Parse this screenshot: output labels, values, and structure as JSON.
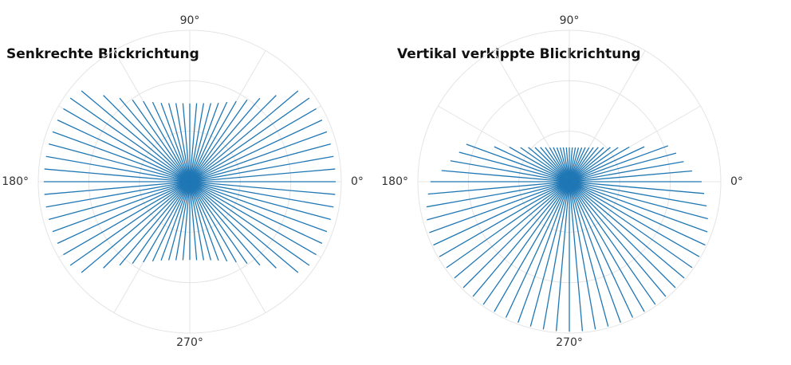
{
  "chart_data": [
    {
      "type": "polar-rays",
      "title": "Senkrechte Blickrichtung",
      "color": "#1f77b4",
      "rlim": [
        0,
        3
      ],
      "rticks": [
        1,
        2,
        3
      ],
      "thetaticks": [
        {
          "value": 0,
          "label": "0°"
        },
        {
          "value": 90,
          "label": "90°"
        },
        {
          "value": 180,
          "label": "180°"
        },
        {
          "value": 270,
          "label": "270°"
        }
      ],
      "thetagrid": [
        0,
        30,
        60,
        90,
        120,
        150,
        180,
        210,
        240,
        270,
        300,
        330
      ],
      "theta": [
        0,
        5,
        10,
        15,
        20,
        25,
        30,
        35,
        40,
        45,
        50,
        55,
        60,
        65,
        70,
        75,
        80,
        85,
        90,
        95,
        100,
        105,
        110,
        115,
        120,
        125,
        130,
        135,
        140,
        145,
        150,
        155,
        160,
        165,
        170,
        175,
        180,
        185,
        190,
        195,
        200,
        205,
        210,
        215,
        220,
        225,
        230,
        235,
        240,
        245,
        250,
        255,
        260,
        265,
        270,
        275,
        280,
        285,
        290,
        295,
        300,
        305,
        310,
        315,
        320,
        325,
        330,
        335,
        340,
        345,
        350,
        355
      ],
      "values": [
        2.89,
        2.89,
        2.89,
        2.89,
        2.89,
        2.89,
        2.89,
        2.89,
        2.8,
        2.42,
        2.16,
        1.98,
        1.84,
        1.74,
        1.66,
        1.61,
        1.58,
        1.56,
        1.55,
        1.56,
        1.58,
        1.61,
        1.66,
        1.74,
        1.84,
        1.98,
        2.16,
        2.42,
        2.8,
        2.89,
        2.89,
        2.89,
        2.89,
        2.89,
        2.89,
        2.89,
        2.89,
        2.89,
        2.89,
        2.89,
        2.89,
        2.89,
        2.89,
        2.89,
        2.8,
        2.42,
        2.16,
        1.98,
        1.84,
        1.74,
        1.66,
        1.61,
        1.58,
        1.56,
        1.55,
        1.56,
        1.58,
        1.61,
        1.66,
        1.74,
        1.84,
        1.98,
        2.16,
        2.42,
        2.8,
        2.89,
        2.89,
        2.89,
        2.89,
        2.89,
        2.89,
        2.89
      ]
    },
    {
      "type": "polar-rays",
      "title": "Vertikal verkippte Blickrichtung",
      "color": "#1f77b4",
      "rlim": [
        0,
        3
      ],
      "rticks": [
        1,
        2,
        3
      ],
      "thetaticks": [
        {
          "value": 0,
          "label": "0°"
        },
        {
          "value": 90,
          "label": "90°"
        },
        {
          "value": 180,
          "label": "180°"
        },
        {
          "value": 270,
          "label": "270°"
        }
      ],
      "thetagrid": [
        0,
        30,
        60,
        90,
        120,
        150,
        180,
        210,
        240,
        270,
        300,
        330
      ],
      "theta": [
        0,
        5,
        10,
        15,
        20,
        25,
        30,
        35,
        40,
        45,
        50,
        55,
        60,
        65,
        70,
        75,
        80,
        85,
        90,
        95,
        100,
        105,
        110,
        115,
        120,
        125,
        130,
        135,
        140,
        145,
        150,
        155,
        160,
        165,
        170,
        175,
        180,
        185,
        190,
        195,
        200,
        205,
        210,
        215,
        220,
        225,
        230,
        235,
        240,
        245,
        250,
        255,
        260,
        265,
        270,
        275,
        280,
        285,
        290,
        295,
        300,
        305,
        310,
        315,
        320,
        325,
        330,
        335,
        340,
        345,
        350,
        355
      ],
      "values": [
        2.62,
        2.44,
        2.3,
        2.19,
        2.08,
        1.64,
        1.37,
        1.18,
        1.06,
        0.96,
        0.89,
        0.83,
        0.78,
        0.75,
        0.72,
        0.7,
        0.69,
        0.68,
        0.68,
        0.68,
        0.69,
        0.7,
        0.72,
        0.75,
        0.78,
        0.83,
        0.89,
        0.96,
        1.06,
        1.18,
        1.37,
        1.64,
        2.17,
        2.26,
        2.39,
        2.54,
        2.75,
        2.81,
        2.87,
        2.92,
        2.95,
        2.97,
        2.97,
        2.97,
        2.97,
        2.97,
        2.97,
        2.97,
        2.97,
        2.97,
        2.97,
        2.97,
        2.97,
        2.97,
        2.97,
        2.97,
        2.97,
        2.97,
        2.97,
        2.97,
        2.97,
        2.97,
        2.97,
        2.97,
        2.97,
        2.97,
        2.97,
        2.97,
        2.91,
        2.84,
        2.76,
        2.68
      ]
    }
  ]
}
